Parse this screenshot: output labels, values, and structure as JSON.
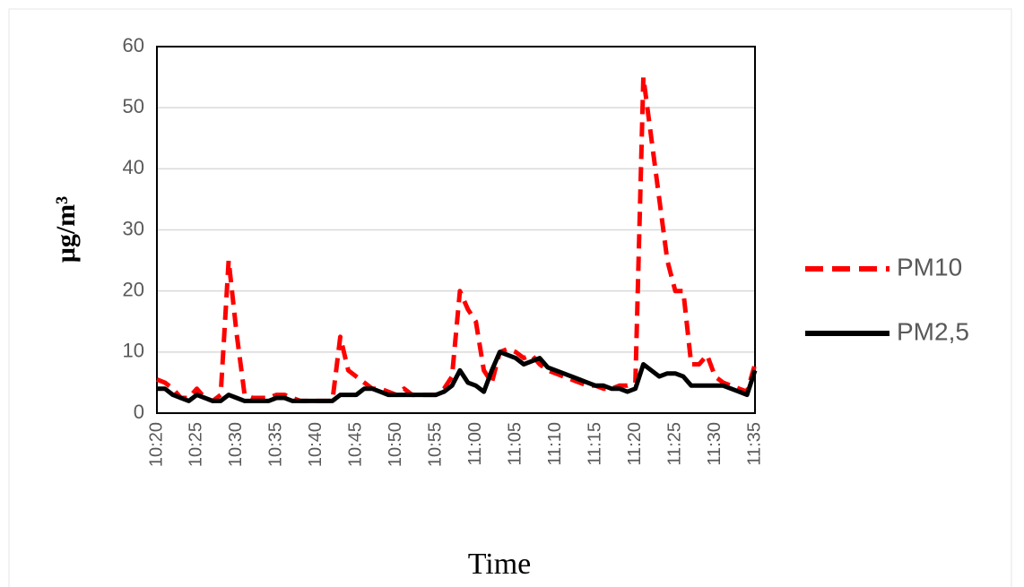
{
  "chart_data": {
    "type": "line",
    "y_label": "μg/m³",
    "x_label": "Time",
    "categories": [
      "10:20",
      null,
      null,
      null,
      null,
      "10:25",
      null,
      null,
      null,
      null,
      "10:30",
      null,
      null,
      null,
      null,
      "10:35",
      null,
      null,
      null,
      null,
      "10:40",
      null,
      null,
      null,
      null,
      "10:45",
      null,
      null,
      null,
      null,
      "10:50",
      null,
      null,
      null,
      null,
      "10:55",
      null,
      null,
      null,
      null,
      "11:00",
      null,
      null,
      null,
      null,
      "11:05",
      null,
      null,
      null,
      null,
      "11:10",
      null,
      null,
      null,
      null,
      "11:15",
      null,
      null,
      null,
      null,
      "11:20",
      null,
      null,
      null,
      null,
      "11:25",
      null,
      null,
      null,
      null,
      "11:30",
      null,
      null,
      null,
      null,
      "11:35"
    ],
    "series": [
      {
        "name": "PM10",
        "color": "#ff0000",
        "linestyle": "dashed",
        "values": [
          5.5,
          5,
          4,
          2.5,
          2.5,
          4,
          2.5,
          2,
          3,
          25,
          13,
          3,
          2.5,
          2.5,
          2.5,
          3,
          3,
          2.5,
          2,
          2,
          2,
          2,
          2,
          12.5,
          7,
          6,
          5,
          4,
          4,
          3.5,
          3,
          4,
          3,
          3,
          3,
          3,
          4,
          6,
          20,
          17,
          15,
          7,
          5,
          10,
          10.5,
          10,
          9,
          9.5,
          8,
          7,
          6.5,
          6,
          5.5,
          5,
          4.5,
          4.5,
          4,
          4,
          4.5,
          4.5,
          5,
          55,
          45,
          35,
          25,
          20,
          20,
          8,
          8,
          9.5,
          6,
          5,
          4.5,
          4,
          3.5,
          8
        ]
      },
      {
        "name": "PM2,5",
        "color": "#000000",
        "linestyle": "solid",
        "values": [
          4,
          4,
          3,
          2.5,
          2,
          3,
          2.5,
          2,
          2,
          3,
          2.5,
          2,
          2,
          2,
          2,
          2.5,
          2.5,
          2,
          2,
          2,
          2,
          2,
          2,
          3,
          3,
          3,
          4,
          4,
          3.5,
          3,
          3,
          3,
          3,
          3,
          3,
          3,
          3.5,
          4.5,
          7,
          5,
          4.5,
          3.5,
          7,
          10,
          9.5,
          9,
          8,
          8.5,
          9,
          7.5,
          7,
          6.5,
          6,
          5.5,
          5,
          4.5,
          4.5,
          4,
          4,
          3.5,
          4,
          8,
          7,
          6,
          6.5,
          6.5,
          6,
          4.5,
          4.5,
          4.5,
          4.5,
          4.5,
          4,
          3.5,
          3,
          7
        ]
      }
    ],
    "ylim": [
      0,
      60
    ],
    "yticks": [
      0,
      10,
      20,
      30,
      40,
      50,
      60
    ],
    "grid": true,
    "legend": "right"
  }
}
